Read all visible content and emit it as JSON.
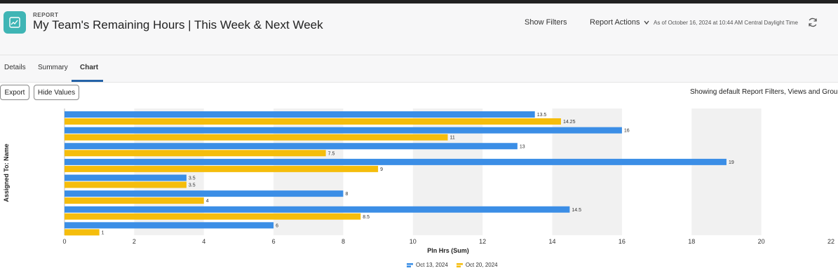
{
  "header": {
    "kicker": "REPORT",
    "title": "My Team's Remaining Hours | This Week & Next Week",
    "show_filters": "Show Filters",
    "report_actions": "Report Actions",
    "as_of": "As of October 16, 2024 at 10:44 AM Central Daylight Time"
  },
  "tabs": [
    {
      "label": "Details"
    },
    {
      "label": "Summary"
    },
    {
      "label": "Chart"
    }
  ],
  "toolbar": {
    "export_label": "Export",
    "hide_values_label": "Hide Values",
    "default_note": "Showing default Report Filters, Views and Groups"
  },
  "colors": {
    "series1": "#3b8ee6",
    "series2": "#f5bd0c",
    "accent": "#2563a8",
    "icon_bg": "#3fb5b5"
  },
  "chart_data": {
    "type": "bar",
    "orientation": "horizontal",
    "categories": [
      "",
      "",
      "",
      "",
      "",
      "",
      "",
      ""
    ],
    "series": [
      {
        "name": "Oct 13, 2024",
        "values": [
          13.5,
          16,
          13,
          19,
          3.5,
          8,
          14.5,
          6
        ],
        "labels": [
          "13.5",
          "16",
          "13",
          "19",
          "3.5",
          "8",
          "14.5",
          "6"
        ]
      },
      {
        "name": "Oct 20, 2024",
        "values": [
          14.25,
          11,
          7.5,
          9,
          3.5,
          4,
          8.5,
          1
        ],
        "labels": [
          "14.25",
          "11",
          "7.5",
          "9",
          "3.5",
          "4",
          "8.5",
          "1"
        ]
      }
    ],
    "xlabel": "Pln Hrs (Sum)",
    "ylabel": "Assigned To: Name",
    "xlim": [
      0,
      22
    ],
    "xticks": [
      "0",
      "2",
      "4",
      "6",
      "8",
      "10",
      "12",
      "14",
      "16",
      "18",
      "20",
      "22"
    ],
    "legend_position": "bottom-center"
  }
}
